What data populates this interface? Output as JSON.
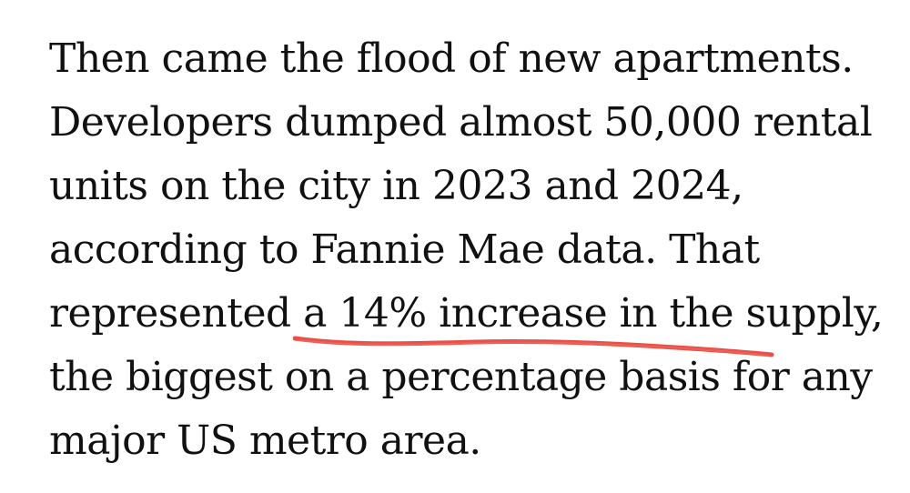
{
  "article": {
    "lines": [
      "Then came the flood of new apartments.",
      "Developers dumped almost 50,000 rental",
      "units on the city in 2023 and 2024,",
      "according to Fannie Mae data. That",
      "represented a ",
      "14% increase in the supply,",
      "the biggest on a percentage basis for any",
      "major US metro area."
    ]
  },
  "annotation": {
    "type": "hand-drawn underline",
    "color": "#e8413a"
  }
}
